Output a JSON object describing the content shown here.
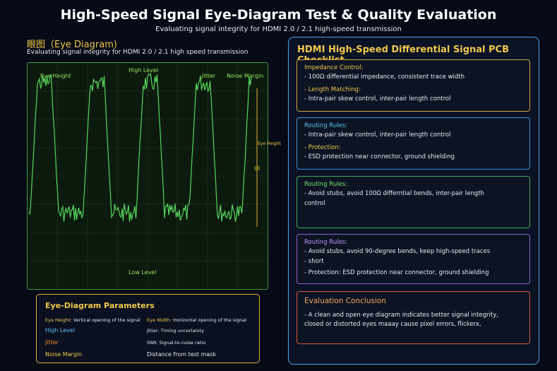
{
  "header": {
    "title": "High-Speed Signal Eye-Diagram Test & Quality Evaluation",
    "subtitle": "Evaluating signal integrity for HDMI 2.0 / 2.1 high-speed transmission"
  },
  "scope_panel": {
    "title": "眼图（Eye Diagram)",
    "subtitle": "Evaluating signal integrity for HDMI 2.0 / 2.1 high speed transmission",
    "labels": {
      "eye_height": "Eye Height",
      "high_level": "High Level",
      "jitter": "Jitter",
      "noise": "Noise",
      "margin": "Margin",
      "eye_height_marker": "Eye Height",
      "ui": "UI",
      "low_level": "Low Level"
    },
    "colors": {
      "trace": "#57d65c",
      "marker": "#e0b33b",
      "grid": "#1d3a22"
    }
  },
  "params": {
    "title": "Eye-Diagram Parameters",
    "items": [
      {
        "term": "Eye Height",
        "desc": ": Vertical opening of the signal"
      },
      {
        "term": "Eye Width",
        "desc": ": Horizontal opening of the signal"
      },
      {
        "term": "High Level",
        "desc": ""
      },
      {
        "term": "Jitter",
        "desc": ": Timing uncertainty"
      },
      {
        "term": "Jitter",
        "desc": ""
      },
      {
        "term": "SNR",
        "desc": ": Signal-to-noise ratio"
      },
      {
        "term": "Noise Margin",
        "desc": ""
      },
      {
        "term": "Distance from test mask",
        "desc": ""
      }
    ]
  },
  "checklist": {
    "title": "HDMI High-Speed Differential Signal PCB Checklist",
    "box1": {
      "h1": "Impedance Control:",
      "l1": "- 100Ω differential impedance, consistent trace width",
      "h2": "- Length Matching:",
      "l2": "- Intra-pair skew control, inter-pair length control"
    },
    "box2": {
      "h1": "Routing Rules:",
      "l1": "- Intra-pair skew control, inter-pair length control",
      "h2": "- Protection:",
      "l2": "- ESD protection near connector, ground shielding"
    },
    "box3": {
      "h1": "Routing Rules:",
      "l1": "- Avoid stubs, avoid 100Ω differntial bends, inter-pair length",
      "l2": "control"
    },
    "box4": {
      "h1": "Routing Rules:",
      "l1": "- Avoid stubs, avoid 90-degree bends, keep high-speed traces",
      "l2": "- short",
      "l3": "- Protection: ESD protection near connector, ground shielding"
    },
    "box5": {
      "h1": "Evaluation Conclusion",
      "l1": "- A clean and open eye diagram indicates better signal integrity,",
      "l2": "closed or distorted eyes maaay cause pixel errors, flickerx,"
    }
  }
}
